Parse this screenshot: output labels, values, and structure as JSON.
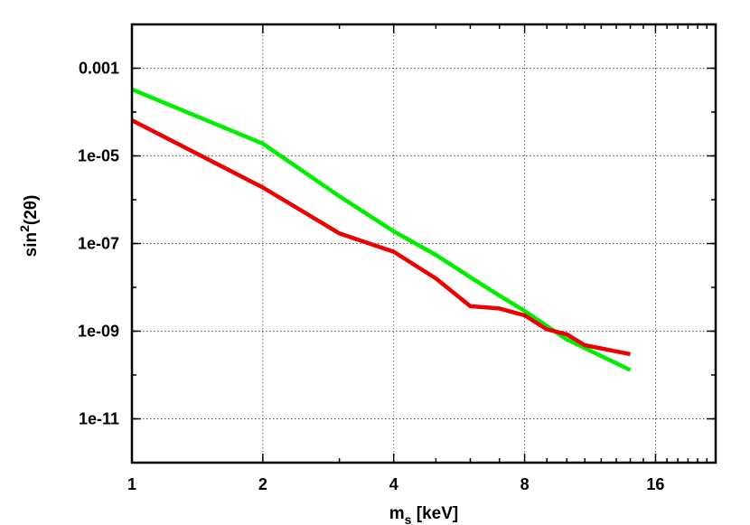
{
  "chart_data": {
    "type": "line",
    "xlabel_main": "m",
    "xlabel_sub": "s",
    "xlabel_rest": " [keV]",
    "ylabel_main": "sin",
    "ylabel_sup": "2",
    "ylabel_rest": "(2θ)",
    "x_scale": "log2",
    "y_scale": "log10",
    "xlim": [
      1,
      22
    ],
    "ylim": [
      1e-12,
      0.01
    ],
    "grid": true,
    "x_ticks": [
      {
        "value": 1,
        "label": "1"
      },
      {
        "value": 2,
        "label": "2"
      },
      {
        "value": 4,
        "label": "4"
      },
      {
        "value": 8,
        "label": "8"
      },
      {
        "value": 16,
        "label": "16"
      }
    ],
    "y_ticks": [
      {
        "value": 0.001,
        "label": "0.001"
      },
      {
        "value": 1e-05,
        "label": "1e-05"
      },
      {
        "value": 1e-07,
        "label": "1e-07"
      },
      {
        "value": 1e-09,
        "label": "1e-09"
      },
      {
        "value": 1e-11,
        "label": "1e-11"
      }
    ],
    "series": [
      {
        "color": "#00ee00",
        "points": [
          [
            1,
            0.00033
          ],
          [
            2,
            1.9e-05
          ],
          [
            3,
            1.2e-06
          ],
          [
            4,
            1.9e-07
          ],
          [
            5,
            5.5e-08
          ],
          [
            6,
            1.7e-08
          ],
          [
            7,
            6.5e-09
          ],
          [
            8,
            2.9e-09
          ],
          [
            10,
            6.5e-10
          ],
          [
            14,
            1.3e-10
          ]
        ]
      },
      {
        "color": "#ee0000",
        "points": [
          [
            1,
            6.5e-05
          ],
          [
            2,
            1.9e-06
          ],
          [
            3,
            1.7e-07
          ],
          [
            4,
            6.5e-08
          ],
          [
            5,
            1.6e-08
          ],
          [
            6,
            3.7e-09
          ],
          [
            7,
            3.3e-09
          ],
          [
            8,
            2.3e-09
          ],
          [
            9,
            1.1e-09
          ],
          [
            10,
            8.5e-10
          ],
          [
            11,
            4.8e-10
          ],
          [
            14,
            3e-10
          ]
        ]
      }
    ]
  }
}
